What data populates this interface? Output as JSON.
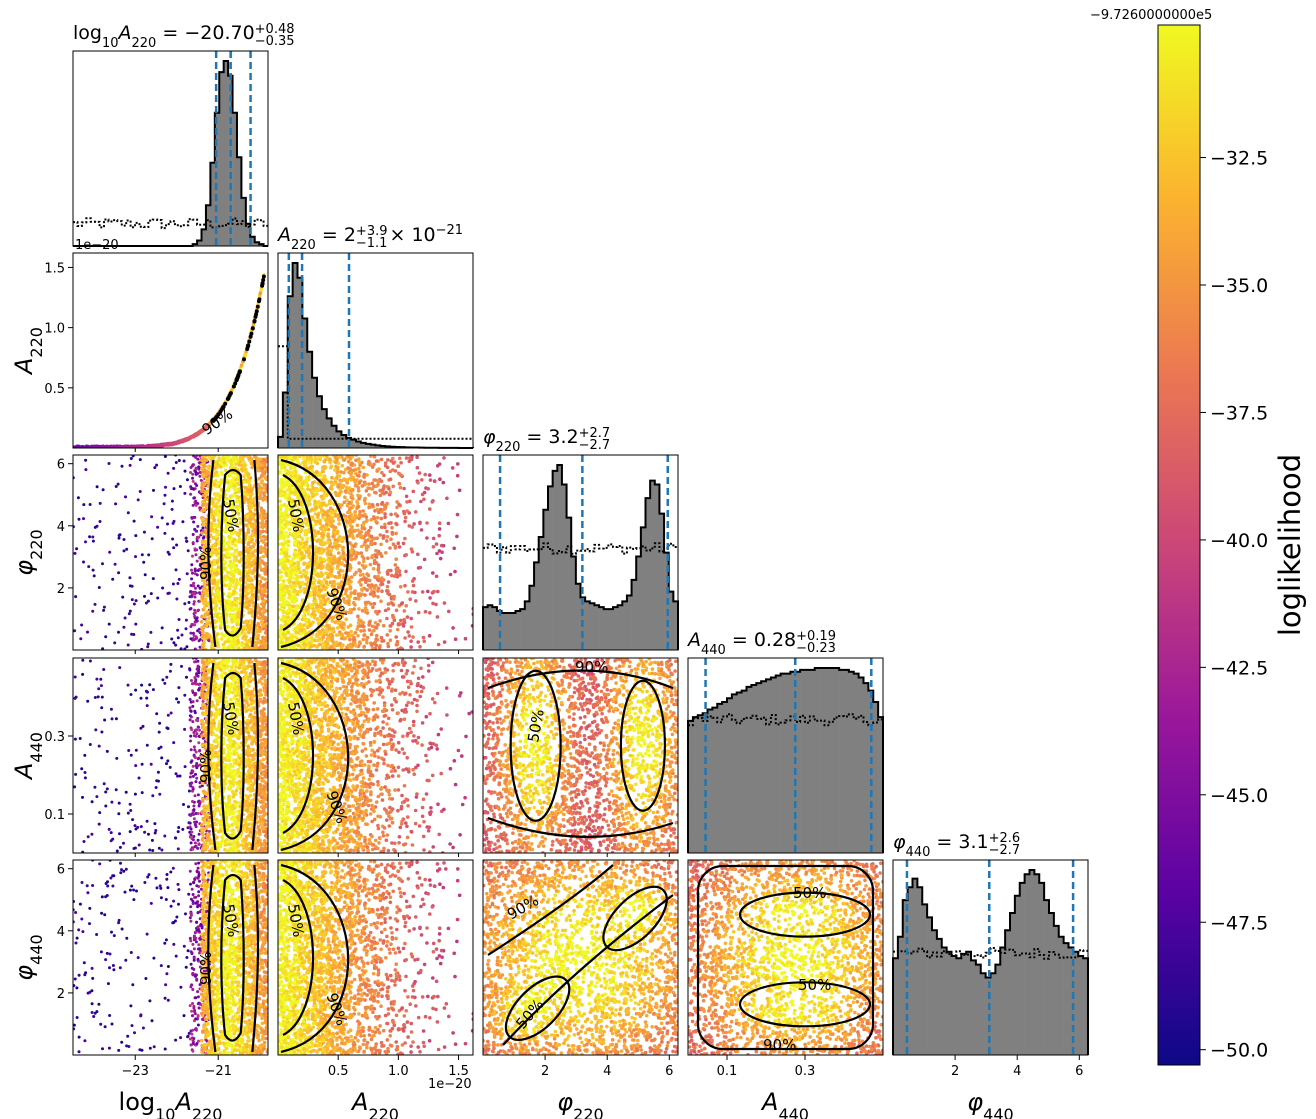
{
  "chart_data": {
    "type": "corner",
    "parameters": [
      {
        "id": "log10A220",
        "axis_label": "log10A220",
        "range": [
          -24.5,
          -19.8
        ],
        "ticks": [
          {
            "v": -23,
            "t": "−23"
          },
          {
            "v": -21,
            "t": "−21"
          }
        ],
        "title": {
          "prefix": "log",
          "sub1": "10",
          "name": "A",
          "sub2": "220",
          "eq": " = −20.70",
          "plus": "+0.48",
          "minus": "−0.35"
        },
        "quantiles": [
          -21.05,
          -20.7,
          -20.22
        ]
      },
      {
        "id": "A220",
        "axis_label": "A220",
        "range": [
          0.0,
          1.62
        ],
        "ticks": [
          {
            "v": 0.5,
            "t": "0.5"
          },
          {
            "v": 1.0,
            "t": "1.0"
          },
          {
            "v": 1.5,
            "t": "1.5"
          }
        ],
        "offset_text": "1e−20",
        "title": {
          "prefix": "",
          "sub1": "",
          "name": "A",
          "sub2": "220",
          "eq": " = 2",
          "plus": "+3.9",
          "minus": "−1.1",
          "suffix": " × 10",
          "sup": "−21"
        },
        "quantiles": [
          0.09,
          0.2,
          0.59
        ]
      },
      {
        "id": "phi220",
        "axis_label": "φ220",
        "range": [
          0.0,
          6.28
        ],
        "ticks": [
          {
            "v": 2,
            "t": "2"
          },
          {
            "v": 4,
            "t": "4"
          },
          {
            "v": 6,
            "t": "6"
          }
        ],
        "title": {
          "prefix": "",
          "sub1": "",
          "name": "φ",
          "sub2": "220",
          "eq": " = 3.2",
          "plus": "+2.7",
          "minus": "−2.7"
        },
        "quantiles": [
          0.55,
          3.2,
          5.95
        ]
      },
      {
        "id": "A440",
        "axis_label": "A440",
        "range": [
          0.0,
          0.5
        ],
        "ticks": [
          {
            "v": 0.1,
            "t": "0.1"
          },
          {
            "v": 0.3,
            "t": "0.3"
          }
        ],
        "title": {
          "prefix": "",
          "sub1": "",
          "name": "A",
          "sub2": "440",
          "eq": " = 0.28",
          "plus": "+0.19",
          "minus": "−0.23"
        },
        "quantiles": [
          0.045,
          0.275,
          0.47
        ]
      },
      {
        "id": "phi440",
        "axis_label": "φ440",
        "range": [
          0.0,
          6.28
        ],
        "ticks": [
          {
            "v": 2,
            "t": "2"
          },
          {
            "v": 4,
            "t": "4"
          },
          {
            "v": 6,
            "t": "6"
          }
        ],
        "title": {
          "prefix": "",
          "sub1": "",
          "name": "φ",
          "sub2": "440",
          "eq": " = 3.1",
          "plus": "+2.6",
          "minus": "−2.7"
        },
        "quantiles": [
          0.45,
          3.1,
          5.8
        ]
      }
    ],
    "row_labels": [
      {
        "name": "A",
        "sub": "220"
      },
      {
        "name": "φ",
        "sub": "220"
      },
      {
        "name": "A",
        "sub": "440"
      },
      {
        "name": "φ",
        "sub": "440"
      }
    ],
    "col_labels": [
      {
        "pre": "log",
        "presub": "10",
        "name": "A",
        "sub": "220"
      },
      {
        "pre": "",
        "presub": "",
        "name": "A",
        "sub": "220"
      },
      {
        "pre": "",
        "presub": "",
        "name": "φ",
        "sub": "220"
      },
      {
        "pre": "",
        "presub": "",
        "name": "A",
        "sub": "440"
      },
      {
        "pre": "",
        "presub": "",
        "name": "φ",
        "sub": "440"
      }
    ],
    "contour_levels": [
      "50%",
      "90%"
    ],
    "histograms": {
      "log10A220": [
        0,
        0,
        0,
        0,
        0,
        0,
        0,
        0,
        0,
        0,
        0,
        0,
        0,
        0,
        0,
        0,
        0,
        0,
        0,
        0,
        0,
        0,
        0,
        0,
        0,
        0,
        0,
        1,
        3,
        9,
        22,
        45,
        72,
        94,
        100,
        92,
        72,
        48,
        26,
        12,
        5,
        2,
        1,
        0
      ],
      "A220": [
        6,
        30,
        82,
        100,
        92,
        70,
        52,
        38,
        28,
        21,
        16,
        12,
        9,
        7,
        5.5,
        4.5,
        3.5,
        2.8,
        2.2,
        1.8,
        1.4,
        1.1,
        0.9,
        0.7,
        0.55,
        0.45,
        0.35,
        0.3,
        0.25,
        0.2,
        0.15,
        0.12,
        0.1,
        0.08,
        0.06,
        0.05,
        0.04,
        0.03,
        0.02,
        0.02
      ],
      "phi220": [
        22,
        23,
        22,
        20,
        19,
        19,
        19,
        20,
        21,
        25,
        33,
        45,
        58,
        72,
        84,
        92,
        95,
        85,
        68,
        48,
        34,
        27,
        25,
        24,
        23,
        22,
        21,
        21,
        22,
        23,
        25,
        28,
        36,
        48,
        63,
        78,
        87,
        85,
        70,
        50,
        30,
        25
      ],
      "A440": [
        70,
        72,
        73,
        74,
        76,
        77,
        79,
        80,
        82,
        84,
        85,
        86,
        88,
        89,
        90,
        91,
        92,
        93,
        94,
        95,
        95,
        96,
        96,
        97,
        97,
        97,
        98,
        98,
        98,
        98,
        98,
        97,
        97,
        96,
        95,
        93,
        90,
        86,
        80,
        72
      ],
      "phi440": [
        45,
        55,
        72,
        78,
        82,
        78,
        70,
        64,
        58,
        54,
        50,
        48,
        46,
        45,
        47,
        48,
        44,
        42,
        38,
        36,
        38,
        42,
        50,
        58,
        66,
        74,
        80,
        84,
        86,
        84,
        80,
        72,
        66,
        60,
        55,
        52,
        50,
        48,
        46,
        45
      ]
    },
    "prior_level": {
      "log10A220": 0.12,
      "A220": 0.6,
      "phi220": 0.55,
      "A440": 0.72,
      "phi440": 0.55
    },
    "colorbar": {
      "label": "loglikelihood",
      "offset_text": "−9.7260000000e5",
      "range": [
        -50.3,
        -29.9
      ],
      "ticks": [
        {
          "v": -32.5,
          "t": "−32.5"
        },
        {
          "v": -35.0,
          "t": "−35.0"
        },
        {
          "v": -37.5,
          "t": "−37.5"
        },
        {
          "v": -40.0,
          "t": "−40.0"
        },
        {
          "v": -42.5,
          "t": "−42.5"
        },
        {
          "v": -45.0,
          "t": "−45.0"
        },
        {
          "v": -47.5,
          "t": "−47.5"
        },
        {
          "v": -50.0,
          "t": "−50.0"
        }
      ],
      "colormap": "plasma",
      "colors": [
        "#0d0887",
        "#5b02a3",
        "#9a179b",
        "#cb4678",
        "#eb7852",
        "#fbb32f",
        "#f0f921"
      ]
    },
    "quantile_line_color": "#1f77b4",
    "hist_fill_color": "#808080"
  }
}
